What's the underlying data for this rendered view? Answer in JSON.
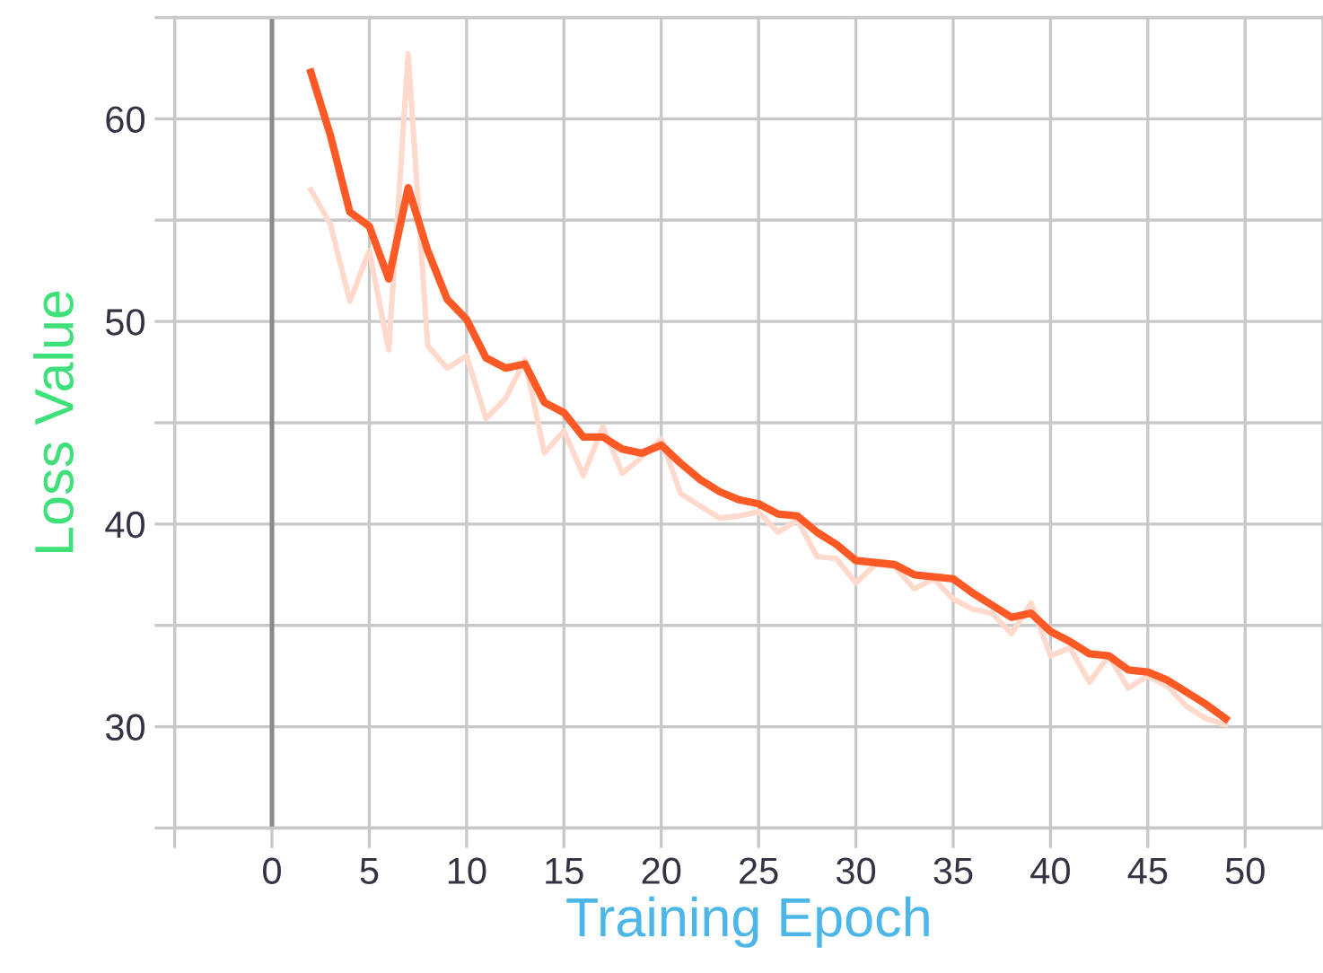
{
  "chart_data": {
    "type": "line",
    "xlabel": "Training Epoch",
    "ylabel": "Loss Value",
    "x": [
      2,
      3,
      4,
      5,
      6,
      7,
      8,
      9,
      10,
      11,
      12,
      13,
      14,
      15,
      16,
      17,
      18,
      19,
      20,
      21,
      22,
      23,
      24,
      25,
      26,
      27,
      28,
      29,
      30,
      31,
      32,
      33,
      34,
      35,
      36,
      37,
      38,
      39,
      40,
      41,
      42,
      43,
      44,
      45,
      46,
      47,
      48,
      49
    ],
    "series": [
      {
        "color": "#ffd9cc",
        "values": [
          56.5,
          54.8,
          51.0,
          53.5,
          48.6,
          63.2,
          48.8,
          47.7,
          48.3,
          45.2,
          46.2,
          48.1,
          43.5,
          44.6,
          42.4,
          44.8,
          42.5,
          43.3,
          44.2,
          41.5,
          40.9,
          40.3,
          40.4,
          40.6,
          39.6,
          40.2,
          38.4,
          38.3,
          37.1,
          38.0,
          37.9,
          36.8,
          37.3,
          36.3,
          35.8,
          35.6,
          34.6,
          36.1,
          33.5,
          33.9,
          32.2,
          33.5,
          31.9,
          32.5,
          32.0,
          31.0,
          30.4,
          30.1
        ]
      },
      {
        "color": "#ff5a26",
        "values": [
          62.3,
          59.2,
          55.4,
          54.7,
          52.1,
          56.6,
          53.5,
          51.1,
          50.1,
          48.2,
          47.7,
          47.9,
          46.0,
          45.5,
          44.3,
          44.3,
          43.7,
          43.5,
          43.9,
          43.0,
          42.2,
          41.6,
          41.2,
          41.0,
          40.5,
          40.4,
          39.6,
          39.0,
          38.2,
          38.1,
          38.0,
          37.5,
          37.4,
          37.3,
          36.6,
          36.0,
          35.4,
          35.6,
          34.7,
          34.2,
          33.6,
          33.5,
          32.8,
          32.7,
          32.3,
          31.7,
          31.1,
          30.4
        ]
      }
    ],
    "xlim": [
      -5,
      54
    ],
    "xticks": [
      {
        "value": -5,
        "label": null
      },
      0,
      5,
      10,
      15,
      20,
      25,
      30,
      35,
      40,
      45,
      50
    ],
    "ylim": [
      25,
      65
    ],
    "yticks": [
      {
        "value": 25,
        "label": null
      },
      30,
      {
        "value": 35,
        "label": null
      },
      40,
      {
        "value": 45,
        "label": null
      },
      50,
      {
        "value": 55,
        "label": null
      },
      60,
      {
        "value": 65,
        "label": null
      }
    ],
    "ref_lines": [
      {
        "axis": "x",
        "value": 0,
        "color": "#888888"
      }
    ],
    "grid": true,
    "marker": "none",
    "line_style": "solid"
  }
}
